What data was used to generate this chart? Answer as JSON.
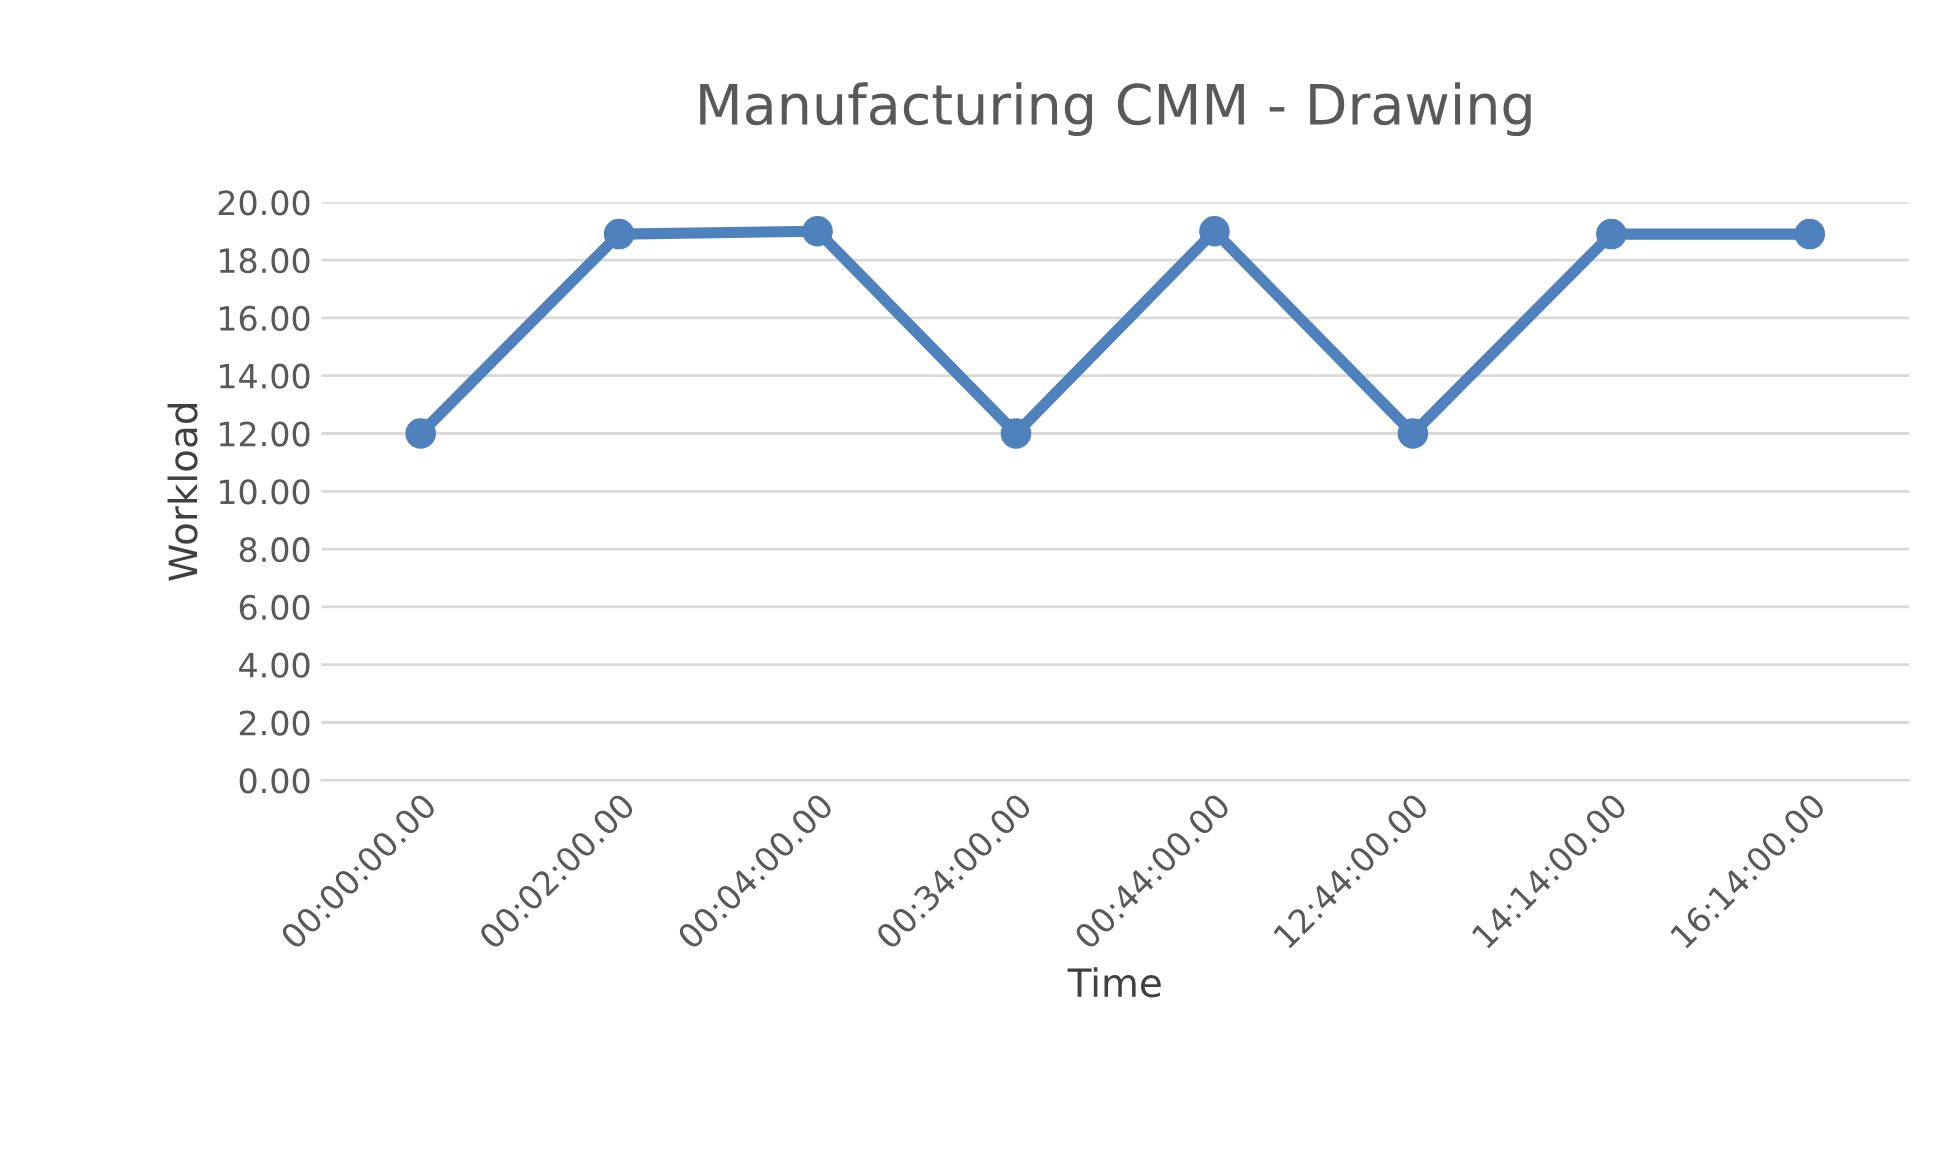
{
  "chart_data": {
    "type": "line",
    "title": "Manufacturing CMM - Drawing",
    "xlabel": "Time",
    "ylabel": "Workload",
    "categories": [
      "00:00:00.00",
      "00:02:00.00",
      "00:04:00.00",
      "00:34:00.00",
      "00:44:00.00",
      "12:44:00.00",
      "14:14:00.00",
      "16:14:00.00"
    ],
    "series": [
      {
        "color": "#4f81bd",
        "values": [
          12,
          18.9,
          19,
          12,
          19,
          12,
          18.9,
          18.9
        ]
      }
    ],
    "ylim": [
      0,
      20
    ],
    "yticks": [
      {
        "value": 0,
        "label": "0.00"
      },
      {
        "value": 2,
        "label": "2.00"
      },
      {
        "value": 4,
        "label": "4.00"
      },
      {
        "value": 6,
        "label": "6.00"
      },
      {
        "value": 8,
        "label": "8.00"
      },
      {
        "value": 10,
        "label": "10.00"
      },
      {
        "value": 12,
        "label": "12.00"
      },
      {
        "value": 14,
        "label": "14.00"
      },
      {
        "value": 16,
        "label": "16.00"
      },
      {
        "value": 18,
        "label": "18.00"
      },
      {
        "value": 20,
        "label": "20.00"
      }
    ],
    "grid": "y",
    "marker": "circle",
    "line_style": "solid"
  }
}
